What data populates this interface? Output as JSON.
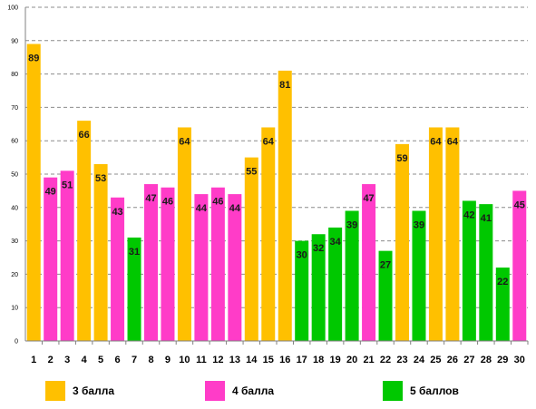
{
  "colors": {
    "3": "#FFC000",
    "4": "#FF3CC8",
    "5": "#00C800",
    "grid": "#8c8c8c",
    "axis": "#808080"
  },
  "legend": [
    {
      "grade": "3",
      "label": "3 балла"
    },
    {
      "grade": "4",
      "label": "4 балла"
    },
    {
      "grade": "5",
      "label": "5 баллов"
    }
  ],
  "chart_data": {
    "type": "bar",
    "title": "",
    "xlabel": "",
    "ylabel": "",
    "ylim": [
      0,
      100
    ],
    "yticks": [
      0,
      10,
      20,
      30,
      40,
      50,
      60,
      70,
      80,
      90,
      100
    ],
    "grid": true,
    "legend_position": "bottom",
    "categories": [
      "1",
      "2",
      "3",
      "4",
      "5",
      "6",
      "7",
      "8",
      "9",
      "10",
      "11",
      "12",
      "13",
      "14",
      "15",
      "16",
      "17",
      "18",
      "19",
      "20",
      "21",
      "22",
      "23",
      "24",
      "25",
      "26",
      "27",
      "28",
      "29",
      "30"
    ],
    "values": [
      89,
      49,
      51,
      66,
      53,
      43,
      31,
      47,
      46,
      64,
      44,
      46,
      44,
      55,
      64,
      81,
      30,
      32,
      34,
      39,
      47,
      27,
      59,
      39,
      64,
      64,
      42,
      41,
      22,
      45
    ],
    "grades": [
      "3",
      "4",
      "4",
      "3",
      "3",
      "4",
      "5",
      "4",
      "4",
      "3",
      "4",
      "4",
      "4",
      "3",
      "3",
      "3",
      "5",
      "5",
      "5",
      "5",
      "4",
      "5",
      "3",
      "5",
      "3",
      "3",
      "5",
      "5",
      "5",
      "4"
    ]
  }
}
